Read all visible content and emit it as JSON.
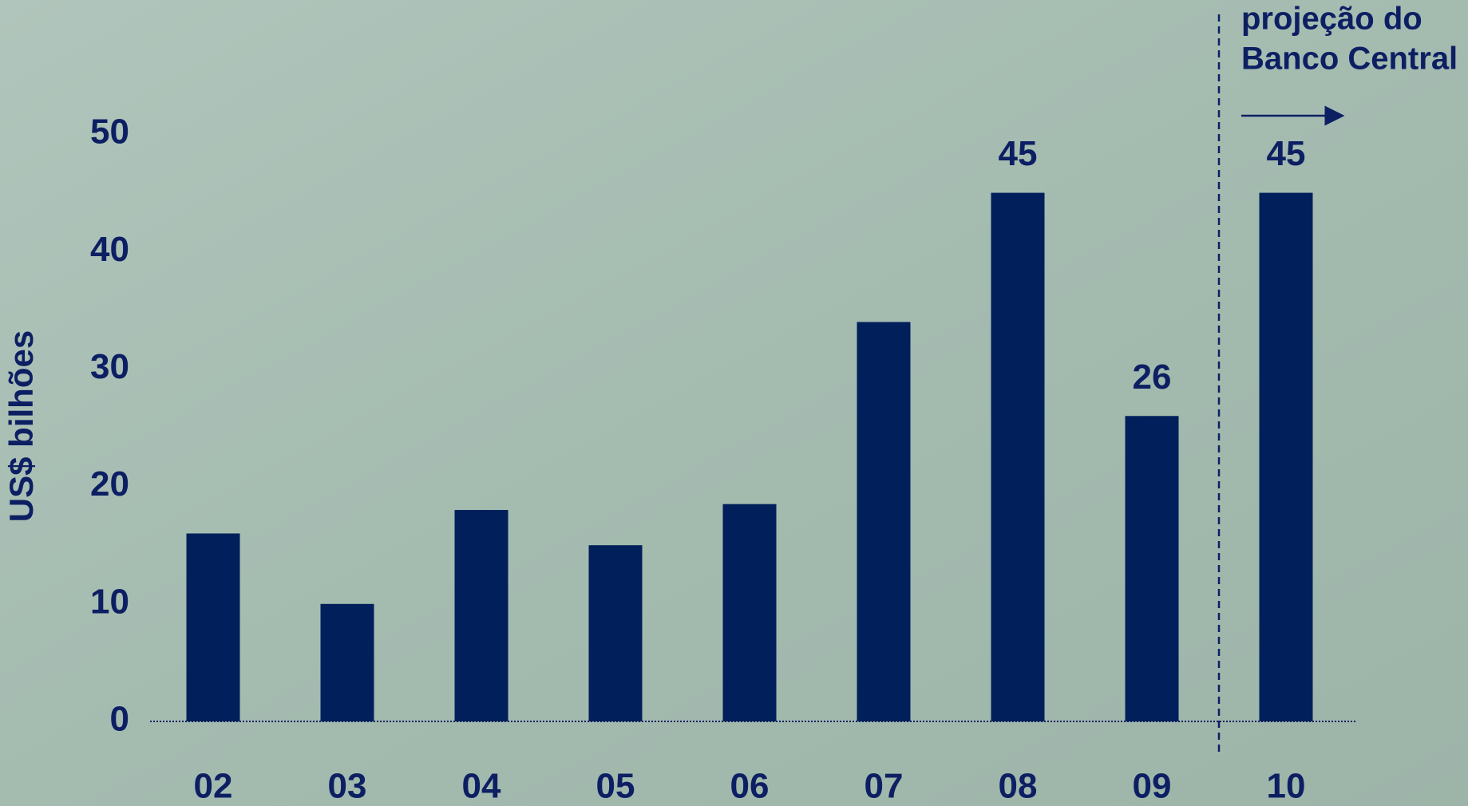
{
  "chart_data": {
    "type": "bar",
    "y_label": "US$ bilhões",
    "categories": [
      "02",
      "03",
      "04",
      "05",
      "06",
      "07",
      "08",
      "09",
      "10"
    ],
    "values": [
      16,
      10,
      18,
      15,
      18.5,
      34,
      45,
      26,
      45
    ],
    "value_labels": [
      null,
      null,
      null,
      null,
      null,
      null,
      "45",
      "26",
      "45"
    ],
    "color": "#001f5b",
    "ylim": [
      0,
      50
    ],
    "yticks": [
      0,
      10,
      20,
      30,
      40,
      50
    ],
    "grid": false,
    "annotation": {
      "lines": [
        "projeção do",
        "Banco Central"
      ],
      "after_category": "09"
    }
  }
}
